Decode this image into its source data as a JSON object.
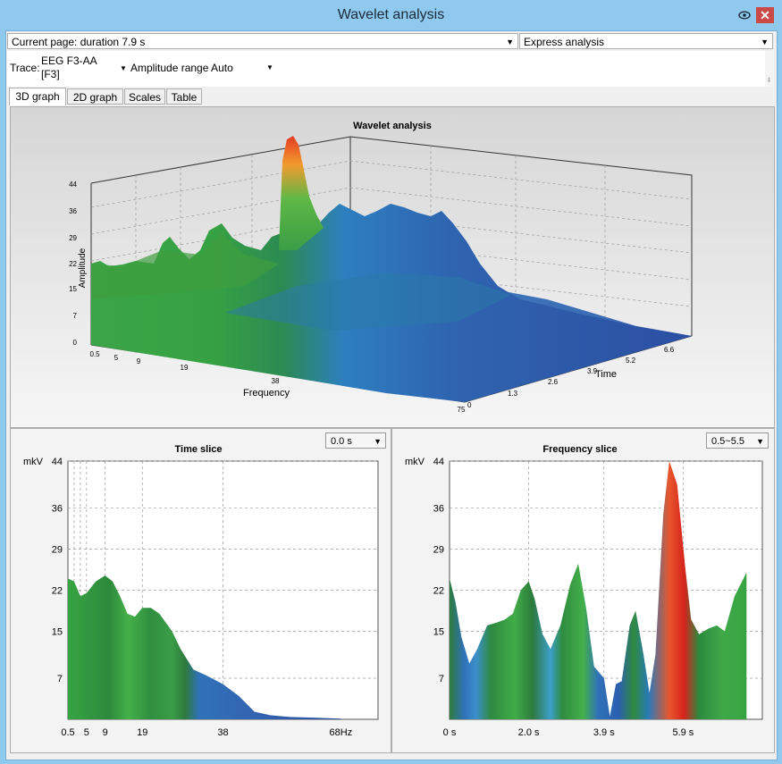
{
  "window": {
    "title": "Wavelet analysis"
  },
  "toolbar": {
    "current_page": "Current page: duration 7.9 s",
    "express": "Express analysis"
  },
  "trace": {
    "label": "Trace:",
    "name_line1": "EEG F3-AA",
    "name_line2": "[F3]",
    "amplitude_range": "Amplitude range Auto"
  },
  "tabs": [
    {
      "label": "3D graph"
    },
    {
      "label": "2D graph"
    },
    {
      "label": "Scales"
    },
    {
      "label": "Table"
    }
  ],
  "graph3d": {
    "title": "Wavelet analysis",
    "amplitude_label": "Amplitude",
    "frequency_label": "Frequency",
    "time_label": "Time",
    "amplitude_ticks": [
      "0",
      "7",
      "15",
      "22",
      "29",
      "36",
      "44"
    ],
    "frequency_ticks": [
      "0.5",
      "5",
      "9",
      "19",
      "38",
      "75"
    ],
    "time_ticks": [
      "0",
      "1.3",
      "2.6",
      "3.9",
      "5.2",
      "6.6"
    ]
  },
  "time_slice": {
    "title": "Time slice",
    "selector": "0.0 s",
    "unit": "mkV",
    "y_ticks": [
      "7",
      "15",
      "22",
      "29",
      "36",
      "44"
    ],
    "x_ticks": [
      "0.5",
      "5",
      "9",
      "19",
      "38",
      "68Hz"
    ]
  },
  "frequency_slice": {
    "title": "Frequency slice",
    "selector": "0.5~5.5",
    "unit": "mkV",
    "y_ticks": [
      "7",
      "15",
      "22",
      "29",
      "36",
      "44"
    ],
    "x_ticks": [
      "0 s",
      "2.0 s",
      "3.9 s",
      "5.9 s"
    ]
  },
  "chart_data": [
    {
      "type": "area",
      "title": "Time slice",
      "xlabel": "Hz",
      "ylabel": "mkV",
      "ylim": [
        0,
        44
      ],
      "x": [
        0.5,
        2,
        3.5,
        5,
        7,
        9,
        11,
        13,
        15,
        17,
        19,
        21,
        23,
        26,
        28,
        31,
        34,
        38,
        42,
        46,
        50,
        55,
        60,
        65,
        68
      ],
      "y": [
        24,
        23.5,
        21,
        21.5,
        23.5,
        24.5,
        23.5,
        21,
        18,
        17.5,
        19,
        19,
        18,
        15,
        12,
        8.5,
        7.5,
        6,
        4,
        1.3,
        0.7,
        0.4,
        0.3,
        0.2,
        0.1
      ]
    },
    {
      "type": "area",
      "title": "Frequency slice",
      "xlabel": "s",
      "ylabel": "mkV",
      "ylim": [
        0,
        44
      ],
      "x": [
        0,
        0.15,
        0.3,
        0.5,
        0.7,
        0.95,
        1.2,
        1.4,
        1.6,
        1.8,
        2.0,
        2.15,
        2.35,
        2.55,
        2.8,
        3.05,
        3.25,
        3.45,
        3.65,
        3.9,
        4.05,
        4.2,
        4.35,
        4.55,
        4.7,
        4.9,
        5.05,
        5.2,
        5.4,
        5.55,
        5.75,
        5.95,
        6.1,
        6.3,
        6.55,
        6.75,
        6.95,
        7.2,
        7.5
      ],
      "y": [
        24,
        20,
        14,
        9.5,
        12,
        16,
        16.5,
        17,
        18,
        22,
        23.5,
        20.5,
        14.5,
        12,
        16,
        23,
        26.5,
        19,
        9,
        7,
        0.5,
        6,
        6.5,
        16,
        18.5,
        11,
        4.5,
        11,
        35,
        44,
        40,
        26,
        17,
        14.5,
        15.5,
        16,
        15,
        21,
        25
      ]
    },
    {
      "type": "surface",
      "title": "Wavelet analysis",
      "xlabel": "Frequency",
      "ylabel": "Time",
      "zlabel": "Amplitude",
      "zlim": [
        0,
        44
      ]
    }
  ]
}
